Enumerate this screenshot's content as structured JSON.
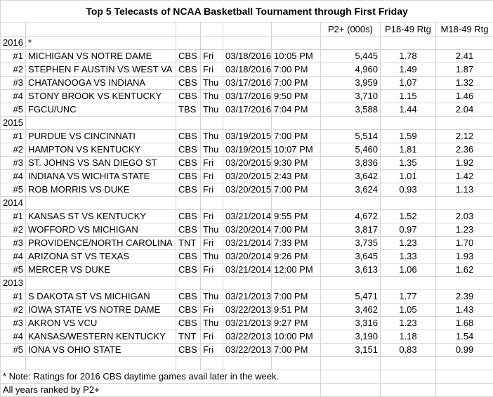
{
  "title": "Top 5 Telecasts of NCAA Basketball Tournament through First Friday",
  "headers": {
    "p2": "P2+ (000s)",
    "p1849": "P18-49 Rtg",
    "m1849": "M18-49 Rtg"
  },
  "sections": [
    {
      "year": "2016",
      "marker": "*",
      "rows": [
        {
          "rank": "#1",
          "game": "MICHIGAN  VS NOTRE DAME",
          "net": "CBS",
          "day": "Fri",
          "date": "03/18/2016",
          "time": "10:05 PM",
          "p2": "5,445",
          "p1849": "1.78",
          "m1849": "2.41"
        },
        {
          "rank": "#2",
          "game": "STEPHEN F AUSTIN VS WEST VA",
          "net": "CBS",
          "day": "Fri",
          "date": "03/18/2016",
          "time": "7:00 PM",
          "p2": "4,960",
          "p1849": "1.49",
          "m1849": "1.87"
        },
        {
          "rank": "#3",
          "game": "CHATANOOGA VS INDIANA",
          "net": "CBS",
          "day": "Thu",
          "date": "03/17/2016",
          "time": "7:00 PM",
          "p2": "3,959",
          "p1849": "1.07",
          "m1849": "1.32"
        },
        {
          "rank": "#4",
          "game": "STONY BROOK VS KENTUCKY",
          "net": "CBS",
          "day": "Thu",
          "date": "03/17/2016",
          "time": "9:50 PM",
          "p2": "3,710",
          "p1849": "1.15",
          "m1849": "1.46"
        },
        {
          "rank": "#5",
          "game": "FGCU/UNC",
          "net": "TBS",
          "day": "Thu",
          "date": "03/17/2016",
          "time": "7:04 PM",
          "p2": "3,588",
          "p1849": "1.44",
          "m1849": "2.04"
        }
      ]
    },
    {
      "year": "2015",
      "marker": "",
      "rows": [
        {
          "rank": "#1",
          "game": "PURDUE VS CINCINNATI",
          "net": "CBS",
          "day": "Thu",
          "date": "03/19/2015",
          "time": "7:00 PM",
          "p2": "5,514",
          "p1849": "1.59",
          "m1849": "2.12"
        },
        {
          "rank": "#2",
          "game": "HAMPTON VS KENTUCKY",
          "net": "CBS",
          "day": "Thu",
          "date": "03/19/2015",
          "time": "10:07 PM",
          "p2": "5,460",
          "p1849": "1.81",
          "m1849": "2.36"
        },
        {
          "rank": "#3",
          "game": "ST. JOHNS VS SAN DIEGO ST",
          "net": "CBS",
          "day": "Fri",
          "date": "03/20/2015",
          "time": "9:30 PM",
          "p2": "3,836",
          "p1849": "1.35",
          "m1849": "1.92"
        },
        {
          "rank": "#4",
          "game": "INDIANA VS WICHITA STATE",
          "net": "CBS",
          "day": "Fri",
          "date": "03/20/2015",
          "time": "2:43 PM",
          "p2": "3,642",
          "p1849": "1.01",
          "m1849": "1.42"
        },
        {
          "rank": "#5",
          "game": "ROB MORRIS VS DUKE",
          "net": "CBS",
          "day": "Fri",
          "date": "03/20/2015",
          "time": "7:00 PM",
          "p2": "3,624",
          "p1849": "0.93",
          "m1849": "1.13"
        }
      ]
    },
    {
      "year": "2014",
      "marker": "",
      "rows": [
        {
          "rank": "#1",
          "game": "KANSAS ST VS KENTUCKY",
          "net": "CBS",
          "day": "Fri",
          "date": "03/21/2014",
          "time": "9:55 PM",
          "p2": "4,672",
          "p1849": "1.52",
          "m1849": "2.03"
        },
        {
          "rank": "#2",
          "game": "WOFFORD VS MICHIGAN",
          "net": "CBS",
          "day": "Thu",
          "date": "03/20/2014",
          "time": "7:00 PM",
          "p2": "3,817",
          "p1849": "0.97",
          "m1849": "1.23"
        },
        {
          "rank": "#3",
          "game": "PROVIDENCE/NORTH CAROLINA",
          "net": "TNT",
          "day": "Fri",
          "date": "03/21/2014",
          "time": "7:33 PM",
          "p2": "3,735",
          "p1849": "1.23",
          "m1849": "1.70"
        },
        {
          "rank": "#4",
          "game": "ARIZONA ST VS TEXAS",
          "net": "CBS",
          "day": "Thu",
          "date": "03/20/2014",
          "time": "9:26 PM",
          "p2": "3,645",
          "p1849": "1.33",
          "m1849": "1.93"
        },
        {
          "rank": "#5",
          "game": "MERCER VS DUKE",
          "net": "CBS",
          "day": "Fri",
          "date": "03/21/2014",
          "time": "12:00 PM",
          "p2": "3,613",
          "p1849": "1.06",
          "m1849": "1.62"
        }
      ]
    },
    {
      "year": "2013",
      "marker": "",
      "rows": [
        {
          "rank": "#1",
          "game": "S DAKOTA ST VS MICHIGAN",
          "net": "CBS",
          "day": "Thu",
          "date": "03/21/2013",
          "time": "7:00 PM",
          "p2": "5,471",
          "p1849": "1.77",
          "m1849": "2.39"
        },
        {
          "rank": "#2",
          "game": "IOWA STATE VS NOTRE DAME",
          "net": "CBS",
          "day": "Fri",
          "date": "03/22/2013",
          "time": "9:51 PM",
          "p2": "3,462",
          "p1849": "1.05",
          "m1849": "1.43"
        },
        {
          "rank": "#3",
          "game": "AKRON VS VCU",
          "net": "CBS",
          "day": "Thu",
          "date": "03/21/2013",
          "time": "9:27 PM",
          "p2": "3,316",
          "p1849": "1.23",
          "m1849": "1.68"
        },
        {
          "rank": "#4",
          "game": "KANSAS/WESTERN KENTUCKY",
          "net": "TNT",
          "day": "Fri",
          "date": "03/22/2013",
          "time": "10:00 PM",
          "p2": "3,190",
          "p1849": "1.18",
          "m1849": "1.54"
        },
        {
          "rank": "#5",
          "game": "IONA VS OHIO STATE",
          "net": "CBS",
          "day": "Fri",
          "date": "03/22/2013",
          "time": "7:00 PM",
          "p2": "3,151",
          "p1849": "0.83",
          "m1849": "0.99"
        }
      ]
    }
  ],
  "notes": {
    "ratings": "* Note: Ratings for 2016 CBS daytime games avail later in the week.",
    "ranking": "All years ranked by P2+"
  }
}
